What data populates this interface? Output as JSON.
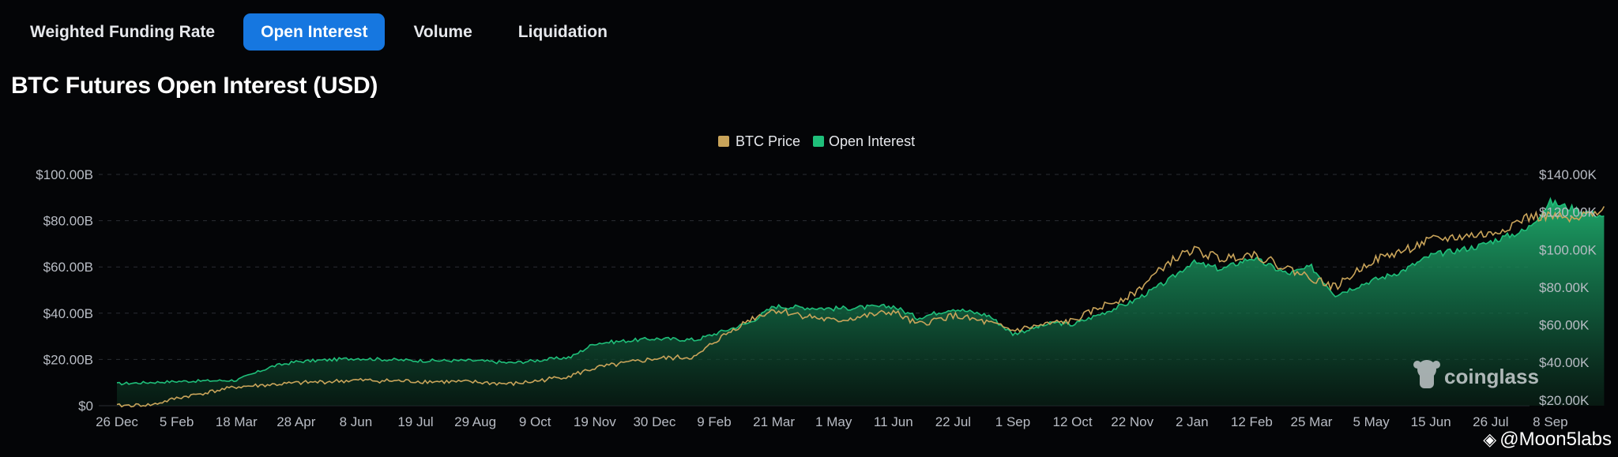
{
  "tabs": [
    {
      "label": "Weighted Funding Rate",
      "active": false
    },
    {
      "label": "Open Interest",
      "active": true
    },
    {
      "label": "Volume",
      "active": false
    },
    {
      "label": "Liquidation",
      "active": false
    }
  ],
  "credit": {
    "text": "@Moon5labs"
  },
  "watermark": {
    "text": "coinglass",
    "icon": "coinglass-logo-icon"
  },
  "colors": {
    "background": "#040507",
    "accent_tab": "#1677e0",
    "btc_price": "#c9a45a",
    "open_interest": "#1fbf7a",
    "grid": "#2a2d33",
    "axis_text": "#b8bcc4"
  },
  "chart_data": {
    "type": "area",
    "title": "BTC Futures Open Interest (USD)",
    "legend": {
      "placement": "top-center"
    },
    "grid": {
      "horizontal": true,
      "style": "dashed"
    },
    "x_tick_labels": [
      "26 Dec",
      "5 Feb",
      "18 Mar",
      "28 Apr",
      "8 Jun",
      "19 Jul",
      "29 Aug",
      "9 Oct",
      "19 Nov",
      "30 Dec",
      "9 Feb",
      "21 Mar",
      "1 May",
      "11 Jun",
      "22 Jul",
      "1 Sep",
      "12 Oct",
      "22 Nov",
      "2 Jan",
      "12 Feb",
      "25 Mar",
      "5 May",
      "15 Jun",
      "26 Jul",
      "8 Sep"
    ],
    "y_left": {
      "ticks": [
        "$0",
        "$20.00B",
        "$40.00B",
        "$60.00B",
        "$80.00B",
        "$100.00B"
      ],
      "range": [
        0,
        100
      ],
      "unit": "B USD"
    },
    "y_right": {
      "ticks": [
        "$20.00K",
        "$40.00K",
        "$60.00K",
        "$80.00K",
        "$100.00K",
        "$120.00K",
        "$140.00K"
      ],
      "range": [
        17,
        140
      ],
      "unit": "K USD"
    },
    "series": [
      {
        "name": "Open Interest",
        "axis": "left",
        "style": "area",
        "x_index": [
          0,
          1,
          2,
          2.6,
          3,
          4,
          5,
          6,
          6.6,
          7,
          7.6,
          8,
          9,
          9.7,
          10,
          10.6,
          11,
          12,
          13,
          13.4,
          14,
          14.6,
          15,
          15.7,
          16,
          16.5,
          17,
          17.6,
          18,
          18.5,
          19,
          19.6,
          20,
          20.4,
          21,
          21.5,
          22,
          22.8,
          23,
          23.6,
          24,
          24.4,
          24.9
        ],
        "values": [
          9.5,
          10.5,
          11,
          17,
          19,
          20.5,
          19.5,
          19.5,
          18.5,
          19.5,
          21,
          27,
          29,
          28.5,
          31,
          36,
          43,
          42,
          43,
          38,
          42,
          39,
          31,
          36,
          35,
          40,
          45,
          54,
          62,
          59,
          64,
          57,
          60,
          48,
          54,
          58,
          65,
          69,
          71,
          76,
          88,
          85,
          82
        ]
      },
      {
        "name": "BTC Price",
        "axis": "right",
        "style": "line",
        "x_index": [
          0,
          0.6,
          1,
          2,
          3,
          4,
          5,
          6,
          6.6,
          7,
          7.6,
          8,
          9,
          9.7,
          10,
          10.6,
          11,
          12,
          13,
          13.4,
          14,
          14.6,
          15,
          15.7,
          16,
          16.5,
          17,
          17.6,
          18,
          18.5,
          19,
          19.6,
          20,
          20.4,
          21,
          21.5,
          22,
          22.8,
          23,
          23.6,
          24,
          24.4,
          24.9
        ],
        "values": [
          17,
          17.5,
          21,
          27,
          29,
          30.5,
          30,
          29.5,
          28.5,
          30,
          33,
          37,
          42,
          43,
          51,
          63,
          68,
          62,
          67,
          60,
          65,
          61,
          57,
          61,
          62,
          70,
          76,
          93,
          100,
          95,
          98,
          90,
          85,
          80,
          94,
          99,
          105,
          108,
          108,
          117,
          118,
          115,
          123
        ]
      }
    ]
  }
}
